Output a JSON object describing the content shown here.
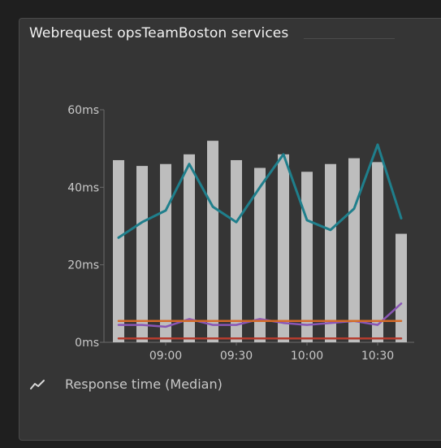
{
  "tile": {
    "title": "Webrequest opsTeamBoston services",
    "legend_label": "Response time (Median)",
    "legend_icon": "line-chart-icon"
  },
  "colors": {
    "background": "#1f1f1f",
    "tile": "#353535",
    "bar": "#bdbdbd",
    "teal_line": "#1f7f8c",
    "purple_line": "#8a56b5",
    "orange_line": "#d46a28",
    "red_line": "#b43c2e"
  },
  "chart_data": {
    "type": "bar",
    "ylim": [
      0,
      60
    ],
    "y_ticks": [
      "0ms",
      "20ms",
      "40ms",
      "60ms"
    ],
    "y_tick_values": [
      0,
      20,
      40,
      60
    ],
    "x_ticks": [
      "09:00",
      "09:30",
      "10:00",
      "10:30"
    ],
    "x_tick_positions": [
      2,
      5,
      8,
      11
    ],
    "categories_count": 13,
    "bars": [
      47,
      45.5,
      46,
      48.5,
      52,
      47,
      45,
      48.5,
      44,
      46,
      47.5,
      46.5,
      28
    ],
    "series": [
      {
        "color": "#1f7f8c",
        "values": [
          27,
          31,
          34,
          46,
          35,
          31,
          40,
          48.5,
          31.5,
          29,
          34.5,
          51,
          32
        ]
      },
      {
        "color": "#8a56b5",
        "values": [
          4.5,
          4.5,
          4,
          6,
          4.5,
          4.5,
          6,
          5,
          4.5,
          5,
          5.5,
          4.5,
          10
        ]
      },
      {
        "color": "#d46a28",
        "values": [
          5.5,
          5.5,
          5.5,
          5.5,
          5.5,
          5.5,
          5.5,
          5.5,
          5.5,
          5.5,
          5.5,
          5.5,
          5.5
        ]
      },
      {
        "color": "#b43c2e",
        "values": [
          1,
          1,
          1,
          1,
          1,
          1,
          1,
          1,
          1,
          1,
          1,
          1,
          1
        ]
      }
    ]
  }
}
